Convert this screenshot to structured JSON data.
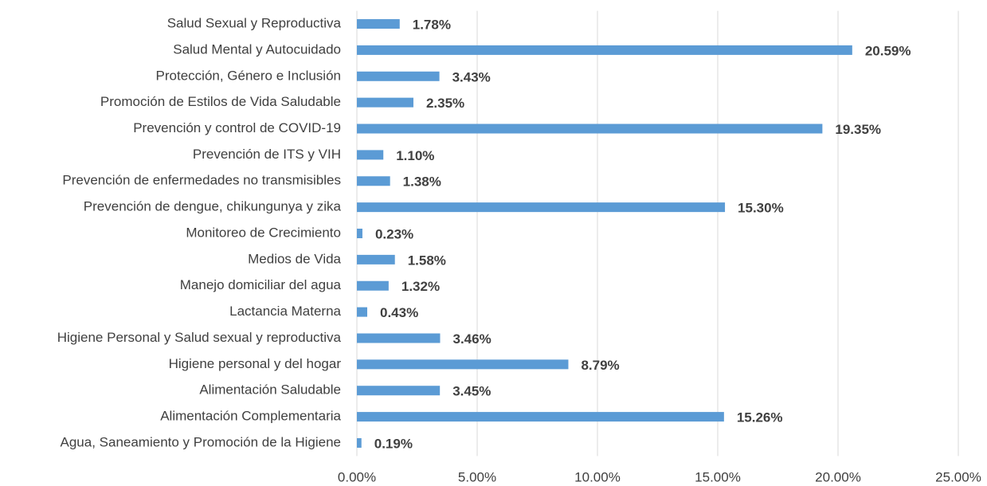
{
  "chart_data": {
    "type": "barh",
    "categories": [
      "Salud Sexual y Reproductiva",
      "Salud Mental y Autocuidado",
      "Protección, Género e Inclusión",
      "Promoción de Estilos de Vida Saludable",
      "Prevención y control de COVID-19",
      "Prevención de ITS y VIH",
      "Prevención de enfermedades no transmisibles",
      "Prevención de dengue, chikungunya y zika",
      "Monitoreo de Crecimiento",
      "Medios de Vida",
      "Manejo domiciliar del agua",
      "Lactancia Materna",
      "Higiene Personal y Salud sexual y reproductiva",
      "Higiene personal y del hogar",
      "Alimentación Saludable",
      "Alimentación Complementaria",
      "Agua, Saneamiento y Promoción de la Higiene"
    ],
    "values": [
      1.78,
      20.59,
      3.43,
      2.35,
      19.35,
      1.1,
      1.38,
      15.3,
      0.23,
      1.58,
      1.32,
      0.43,
      3.46,
      8.79,
      3.45,
      15.26,
      0.19
    ],
    "value_labels": [
      "1.78%",
      "20.59%",
      "3.43%",
      "2.35%",
      "19.35%",
      "1.10%",
      "1.38%",
      "15.30%",
      "0.23%",
      "1.58%",
      "1.32%",
      "0.43%",
      "3.46%",
      "8.79%",
      "3.45%",
      "15.26%",
      "0.19%"
    ],
    "color": "#5b9bd5",
    "xlim": [
      0,
      25
    ],
    "xticks": [
      {
        "value": 0,
        "label": "0.00%"
      },
      {
        "value": 5,
        "label": "5.00%"
      },
      {
        "value": 10,
        "label": "10.00%"
      },
      {
        "value": 15,
        "label": "15.00%"
      },
      {
        "value": 20,
        "label": "20.00%"
      },
      {
        "value": 25,
        "label": "25.00%"
      }
    ],
    "grid": true
  }
}
